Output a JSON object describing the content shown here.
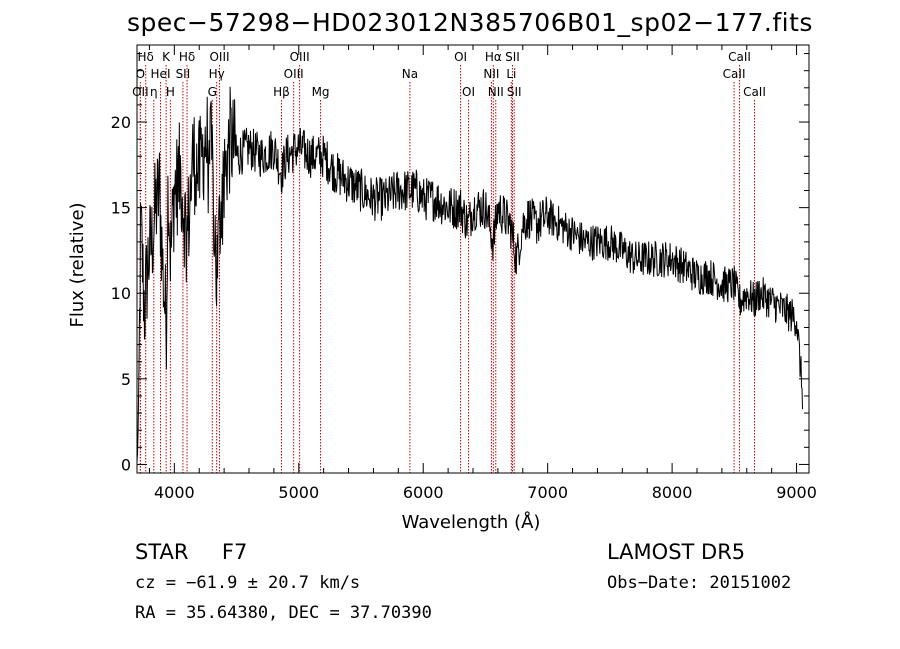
{
  "chart_data": {
    "type": "line",
    "title": "spec−57298−HD023012N385706B01_sp02−177.fits",
    "xlabel": "Wavelength (Å)",
    "ylabel": "Flux (relative)",
    "xlim": [
      3700,
      9100
    ],
    "ylim": [
      -0.5,
      24.5
    ],
    "xticks": [
      4000,
      5000,
      6000,
      7000,
      8000,
      9000
    ],
    "yticks": [
      0,
      5,
      10,
      15,
      20
    ],
    "grid": false,
    "line_color": "#000000",
    "marker_color": "#cc0000",
    "series": [
      {
        "x": [
          3700,
          3710,
          3730,
          3760,
          3790,
          3820,
          3850,
          3880,
          3910,
          3935,
          3950,
          3970,
          4000,
          4050,
          4101,
          4150,
          4200,
          4250,
          4300,
          4340,
          4380,
          4450,
          4500,
          4600,
          4700,
          4800,
          4861,
          4900,
          5000,
          5100,
          5200,
          5300,
          5400,
          5500,
          5600,
          5700,
          5800,
          5893,
          5950,
          6000,
          6100,
          6200,
          6300,
          6364,
          6400,
          6500,
          6563,
          6600,
          6700,
          6750,
          6800,
          6850,
          6900,
          7000,
          7100,
          7200,
          7300,
          7400,
          7500,
          7600,
          7700,
          7800,
          7900,
          8000,
          8100,
          8200,
          8300,
          8400,
          8500,
          8542,
          8600,
          8662,
          8700,
          8800,
          8900,
          9000,
          9050
        ],
        "y": [
          0,
          2,
          14,
          9,
          12,
          13,
          15,
          16,
          11,
          8,
          17,
          12,
          16,
          17,
          13,
          18,
          17,
          19,
          18,
          11,
          16,
          19,
          18,
          18.5,
          18,
          18.5,
          17,
          18,
          18.5,
          18,
          18,
          17,
          16.5,
          16,
          15.5,
          15.5,
          16,
          16,
          16,
          15.5,
          15.5,
          15,
          15,
          14,
          15,
          15,
          13,
          15,
          14,
          12,
          14,
          14.5,
          14,
          14.5,
          14,
          13.5,
          13,
          13,
          13,
          12.5,
          12,
          12,
          12,
          12,
          11.5,
          11,
          11,
          10.5,
          10.5,
          9.5,
          10,
          9.5,
          10,
          9.5,
          9,
          8.5,
          4
        ]
      }
    ],
    "lines": [
      {
        "label": "Hδ",
        "wl": 3770,
        "row": 0
      },
      {
        "label": "K",
        "wl": 3934,
        "row": 0
      },
      {
        "label": "Hδ",
        "wl": 4102,
        "row": 0
      },
      {
        "label": "OIII",
        "wl": 4363,
        "row": 0
      },
      {
        "label": "OIII",
        "wl": 5007,
        "row": 0
      },
      {
        "label": "OI",
        "wl": 6300,
        "row": 0
      },
      {
        "label": "Hα",
        "wl": 6563,
        "row": 0
      },
      {
        "label": "SII",
        "wl": 6717,
        "row": 0
      },
      {
        "label": "CaII",
        "wl": 8542,
        "row": 0
      },
      {
        "label": "O",
        "wl": 3727,
        "row": 1
      },
      {
        "label": "HeI",
        "wl": 3889,
        "row": 1
      },
      {
        "label": "SII",
        "wl": 4069,
        "row": 1
      },
      {
        "label": "Hγ",
        "wl": 4340,
        "row": 1
      },
      {
        "label": "OIII",
        "wl": 4959,
        "row": 1
      },
      {
        "label": "Na",
        "wl": 5893,
        "row": 1
      },
      {
        "label": "NII",
        "wl": 6548,
        "row": 1
      },
      {
        "label": "Li",
        "wl": 6708,
        "row": 1
      },
      {
        "label": "CaII",
        "wl": 8498,
        "row": 1
      },
      {
        "label": "OII",
        "wl": 3727,
        "row": 2
      },
      {
        "label": "η",
        "wl": 3835,
        "row": 2
      },
      {
        "label": "H",
        "wl": 3968,
        "row": 2
      },
      {
        "label": "G",
        "wl": 4305,
        "row": 2
      },
      {
        "label": "Hβ",
        "wl": 4861,
        "row": 2
      },
      {
        "label": "Mg",
        "wl": 5175,
        "row": 2
      },
      {
        "label": "OI",
        "wl": 6364,
        "row": 2
      },
      {
        "label": "NII",
        "wl": 6583,
        "row": 2
      },
      {
        "label": "SII",
        "wl": 6731,
        "row": 2
      },
      {
        "label": "CaII",
        "wl": 8662,
        "row": 2
      }
    ]
  },
  "info": {
    "class": "STAR",
    "subclass": "F7",
    "cz": "cz = −61.9 ± 20.7 km/s",
    "radec": "RA =  35.64380, DEC =  37.70390",
    "survey": "LAMOST DR5",
    "obsdate": "Obs−Date: 20151002"
  }
}
